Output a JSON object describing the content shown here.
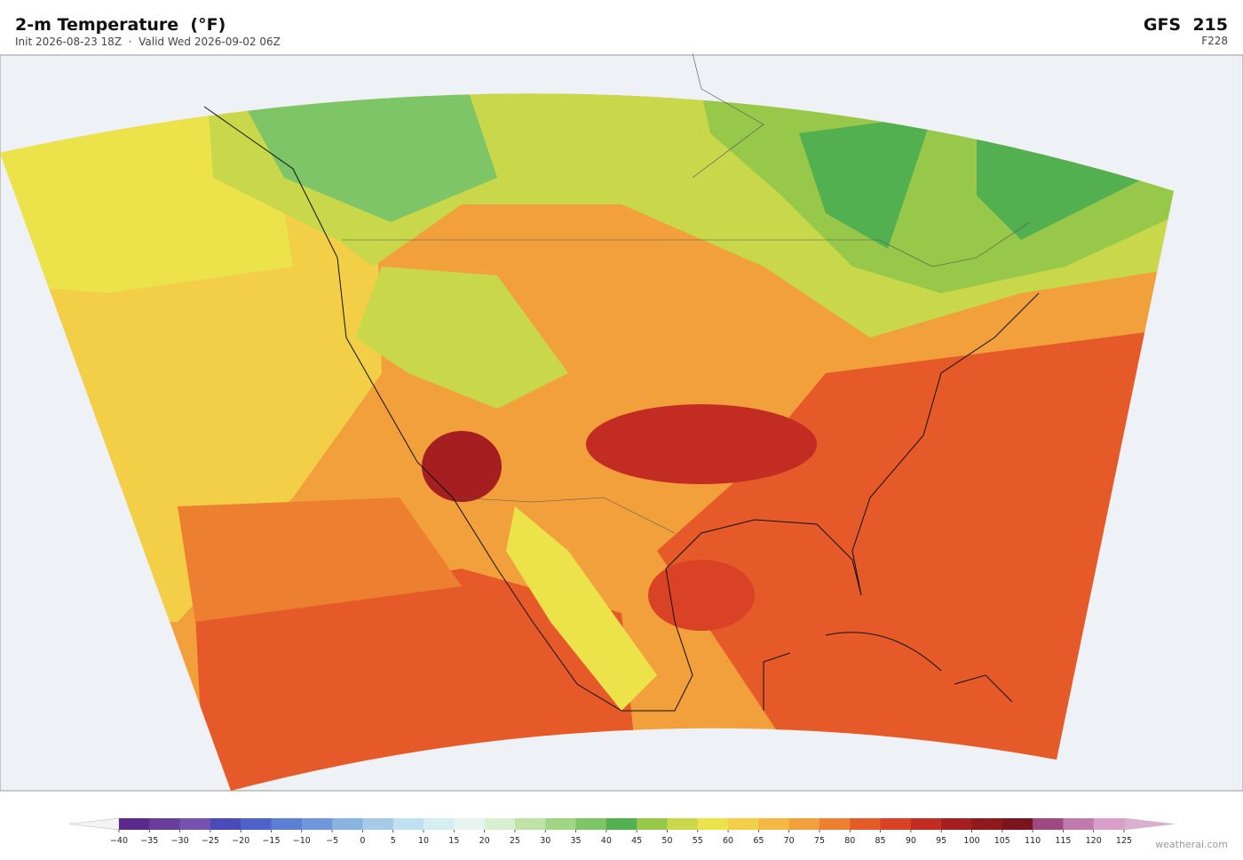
{
  "header": {
    "title": "2-m Temperature  (°F)",
    "subtitle": "Init 2026-08-23 18Z  ·  Valid Wed 2026-09-02 06Z",
    "model": "GFS  215",
    "forecast_hour": "F228"
  },
  "colorbar": {
    "ticks": [
      {
        "value": -40,
        "label": "−40"
      },
      {
        "value": -35,
        "label": "−35"
      },
      {
        "value": -30,
        "label": "−30"
      },
      {
        "value": -25,
        "label": "−25"
      },
      {
        "value": -20,
        "label": "−20"
      },
      {
        "value": -15,
        "label": "−15"
      },
      {
        "value": -10,
        "label": "−10"
      },
      {
        "value": -5,
        "label": "−5"
      },
      0,
      5,
      10,
      15,
      20,
      25,
      30,
      35,
      40,
      45,
      50,
      55,
      60,
      65,
      70,
      75,
      80,
      85,
      90,
      95,
      100,
      105,
      110,
      115,
      120,
      125
    ],
    "colors": [
      "#5b2a8c",
      "#6a3d9a",
      "#7552b0",
      "#4a4ab8",
      "#4f62cc",
      "#5b7fd3",
      "#6f98dc",
      "#8ab4e0",
      "#a6cbe8",
      "#bfe0ee",
      "#d5eef2",
      "#e6f4ef",
      "#d8efd0",
      "#bfe3a6",
      "#9fd584",
      "#7ec568",
      "#52b050",
      "#97c84a",
      "#c8d84a",
      "#ece24a",
      "#f3cf48",
      "#f5b842",
      "#f2a03c",
      "#ec7f30",
      "#e55a28",
      "#d94224",
      "#c22c22",
      "#a51e20",
      "#8e1a1e",
      "#7a1520",
      "#9e4a80",
      "#c07aae",
      "#d8a0c8"
    ]
  },
  "footer": {
    "credit": "weatherai.com"
  }
}
